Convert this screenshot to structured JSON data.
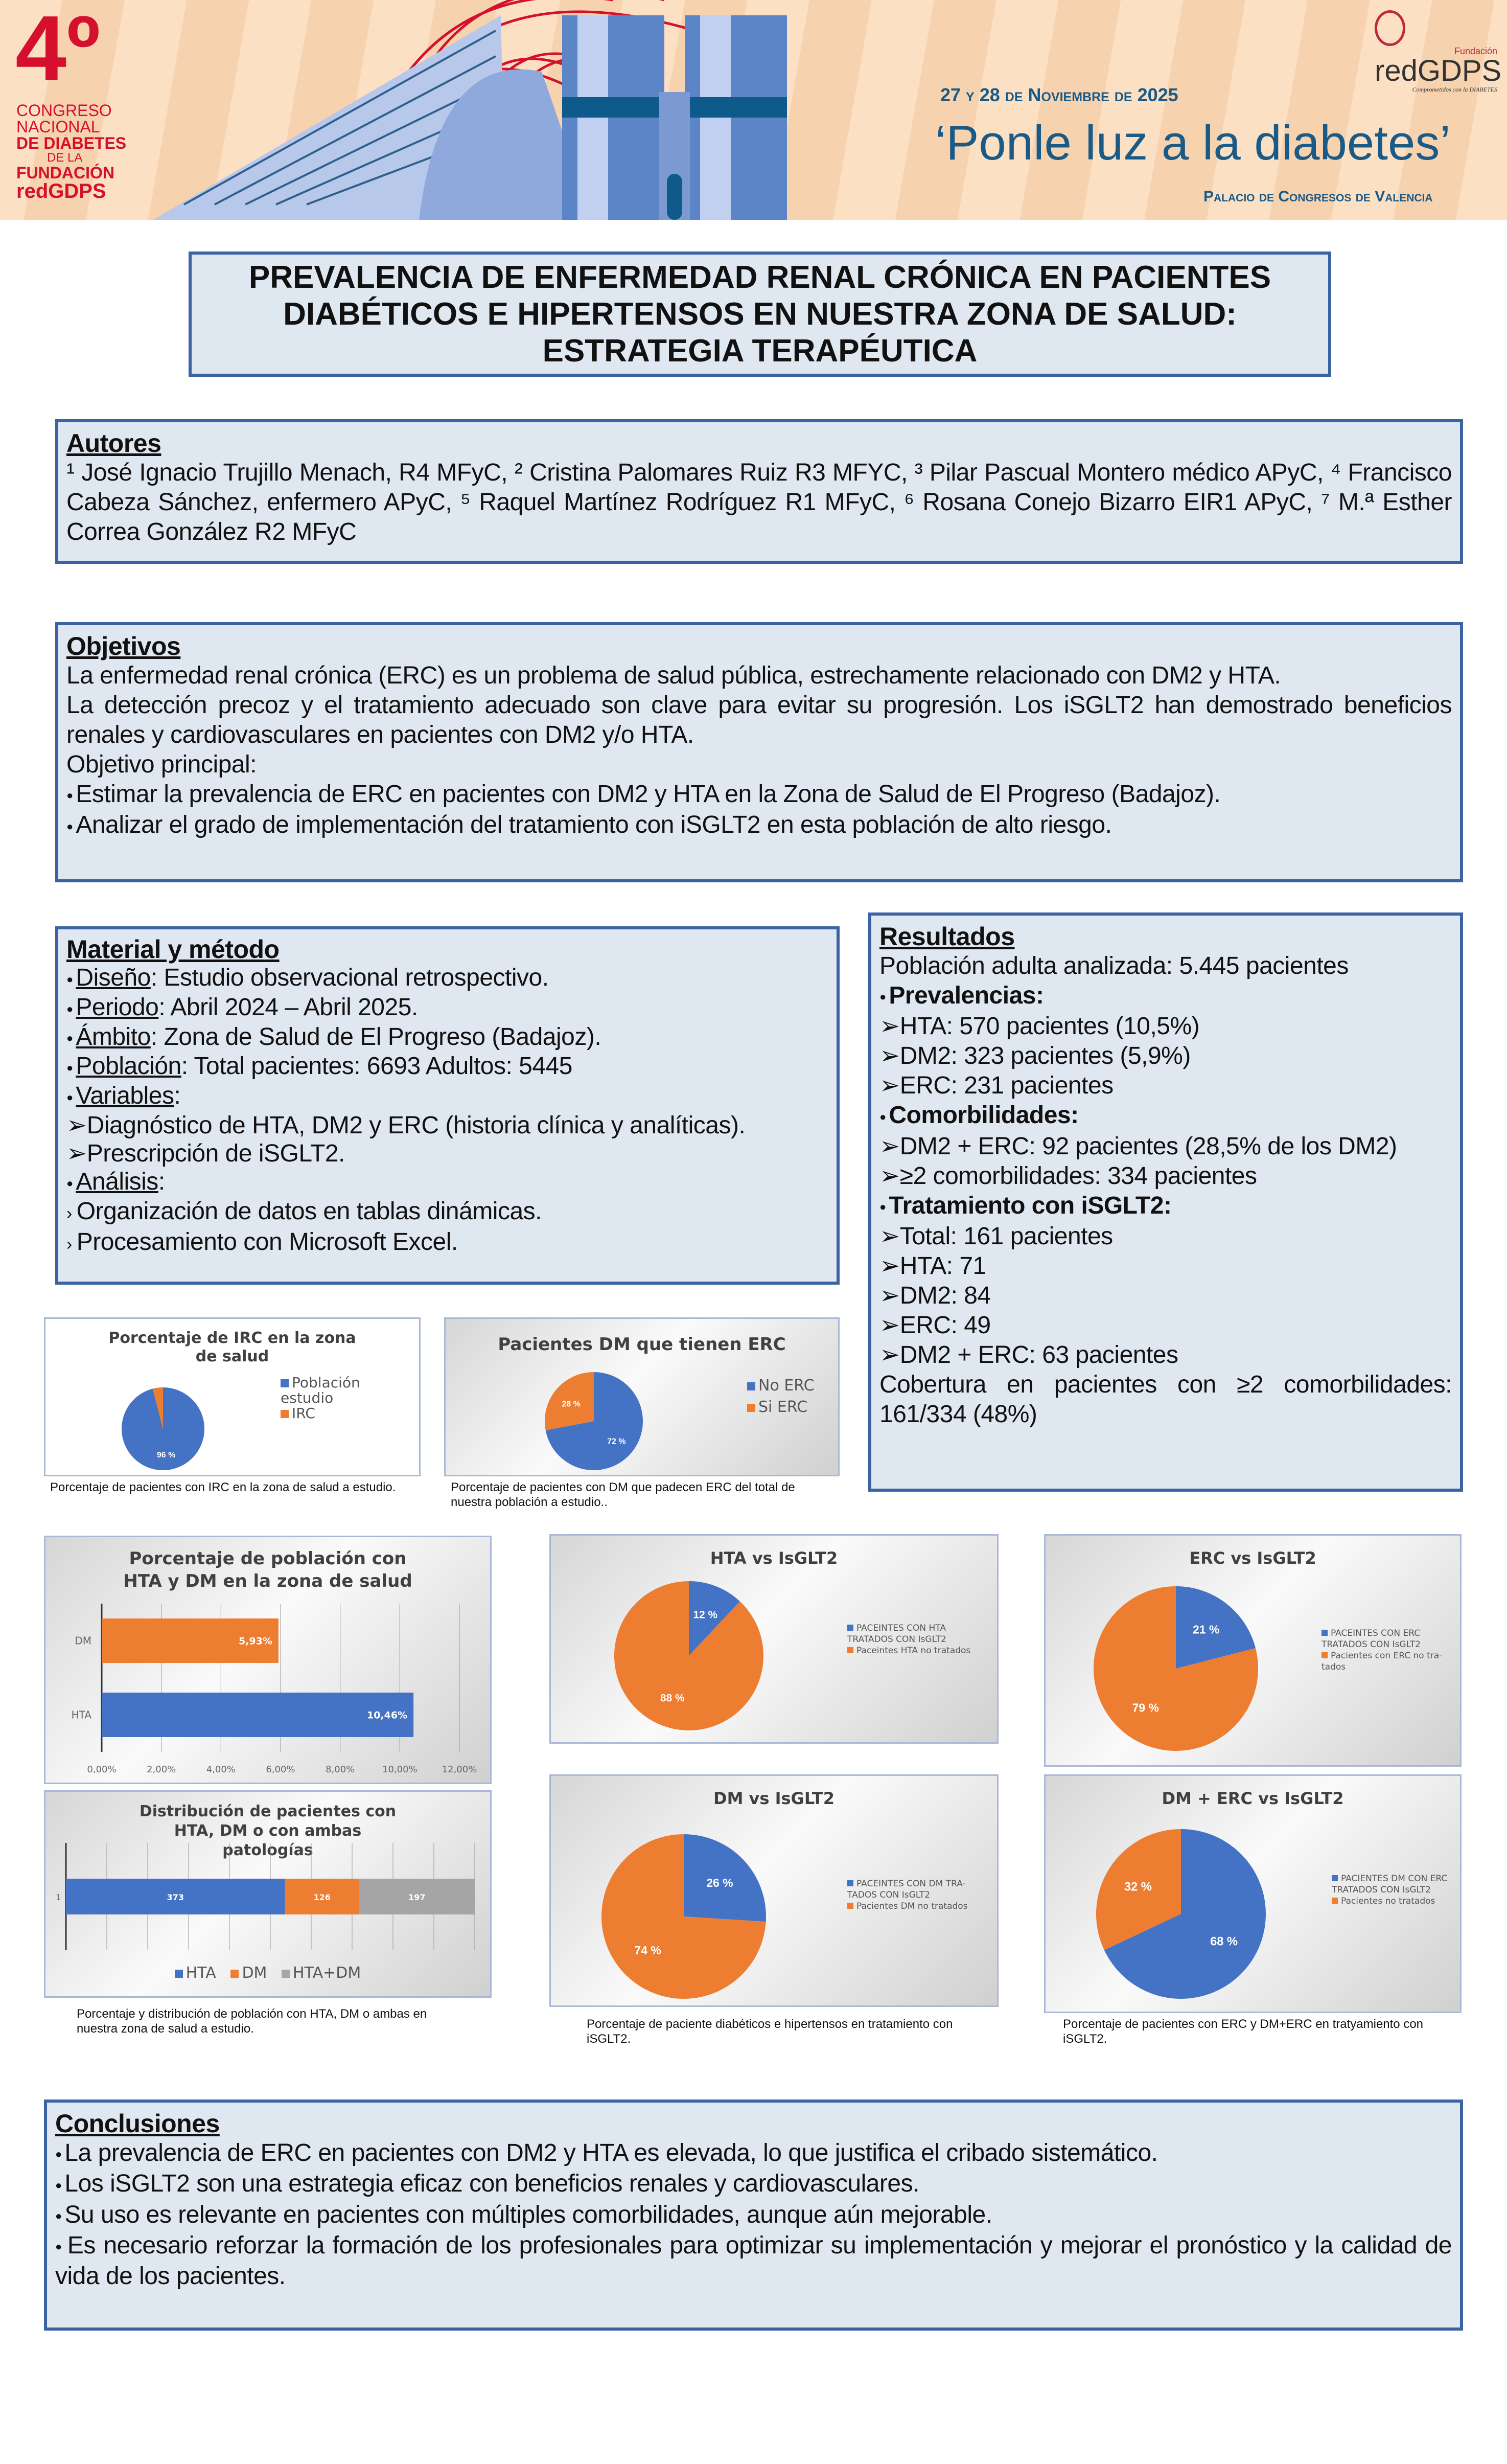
{
  "header": {
    "congress_number": "4º",
    "congress_lines": [
      "CONGRESO",
      "NACIONAL",
      "DE DIABETES",
      "DE LA",
      "FUNDACIÓN",
      "redGDPS"
    ],
    "dates": "27 y 28 de Noviembre de 2025",
    "slogan": "‘Ponle luz a la diabetes’",
    "venue": "Palacio de Congresos de Valencia",
    "logo_small": "Fundación",
    "logo": "redGDPS",
    "logo_tagline": "Comprometidos con la DIABETES",
    "colors": {
      "red": "#d5102e",
      "blue": "#1a5a86",
      "peach": "#f8d9b8"
    }
  },
  "title": "PREVALENCIA DE ENFERMEDAD RENAL CRÓNICA EN PACIENTES DIABÉTICOS E HIPERTENSOS EN NUESTRA ZONA DE SALUD: ESTRATEGIA TERAPÉUTICA",
  "autores": {
    "heading": "Autores",
    "text": "¹ José Ignacio Trujillo Menach, R4 MFyC, ² Cristina Palomares Ruiz R3 MFYC, ³ Pilar Pascual Montero médico APyC, ⁴ Francisco Cabeza Sánchez, enfermero APyC, ⁵ Raquel Martínez Rodríguez R1 MFyC, ⁶ Rosana Conejo Bizarro EIR1 APyC, ⁷ M.ª Esther Correa González R2 MFyC"
  },
  "objetivos": {
    "heading": "Objetivos",
    "p1": "La enfermedad renal crónica (ERC) es un problema de salud pública, estrechamente relacionado con DM2 y HTA.",
    "p2": "La detección precoz y el tratamiento adecuado son clave para evitar su progresión. Los iSGLT2 han demostrado beneficios renales y cardiovasculares en pacientes con DM2 y/o HTA.",
    "p3": "Objetivo principal:",
    "bullets": [
      "Estimar la prevalencia de ERC en pacientes con DM2 y HTA en la Zona de Salud de El Progreso (Badajoz).",
      "Analizar el grado de implementación del tratamiento con iSGLT2 en esta población de alto riesgo."
    ]
  },
  "material": {
    "heading": "Material y método",
    "items": [
      {
        "label": "Diseño",
        "text": ": Estudio observacional retrospectivo."
      },
      {
        "label": "Periodo",
        "text": ": Abril 2024 – Abril 2025."
      },
      {
        "label": "Ámbito",
        "text": ": Zona de Salud de El Progreso (Badajoz)."
      },
      {
        "label": "Población",
        "text": ": Total pacientes: 6693 Adultos: 5445"
      },
      {
        "label": "Variables",
        "text": ":"
      }
    ],
    "variables": [
      "Diagnóstico de HTA, DM2 y ERC (historia clínica y analíticas).",
      "Prescripción de iSGLT2."
    ],
    "analisis_label": "Análisis",
    "analisis_text": ":",
    "analisis": [
      "Organización de datos en tablas dinámicas.",
      "Procesamiento con Microsoft Excel."
    ]
  },
  "resultados": {
    "heading": "Resultados",
    "intro": "Población adulta analizada: 5.445 pacientes",
    "prevalencias": "Prevalencias:",
    "prev_items": [
      "HTA: 570 pacientes (10,5%)",
      "DM2: 323 pacientes (5,9%)",
      "ERC: 231 pacientes"
    ],
    "comorbilidades": "Comorbilidades:",
    "com_items": [
      "DM2 + ERC: 92 pacientes (28,5% de los DM2)",
      "≥2 comorbilidades: 334 pacientes"
    ],
    "tratamiento": "Tratamiento con iSGLT2:",
    "trat_items": [
      "Total: 161 pacientes",
      "HTA: 71",
      "DM2: 84",
      "ERC: 49",
      "DM2 + ERC: 63 pacientes"
    ],
    "cobertura": "Cobertura en pacientes con ≥2 comorbilidades: 161/334 (48%)"
  },
  "captions": {
    "irc": "Porcentaje de pacientes con IRC en la zona de salud a estudio.",
    "dm_erc": "Porcentaje de pacientes con DM que padecen ERC del total de nuestra población a estudio..",
    "hta_dm": "Porcentaje y distribución de población con HTA, DM o ambas en nuestra zona de salud a estudio.",
    "isglt2": "Porcentaje de paciente diabéticos e hipertensos en tratamiento con iSGLT2.",
    "erc_isglt2": "Porcentaje de pacientes con ERC y DM+ERC en tratyamiento con iSGLT2."
  },
  "conclusiones": {
    "heading": "Conclusiones",
    "bullets": [
      "La prevalencia de ERC en pacientes con DM2 y HTA es elevada, lo que justifica el cribado sistemático.",
      "Los iSGLT2 son una estrategia eficaz con beneficios renales y cardiovasculares.",
      "Su uso es relevante en pacientes con múltiples comorbilidades, aunque aún mejorable.",
      "Es necesario reforzar la formación de los profesionales para optimizar su implementación y mejorar el pronóstico y la calidad de vida de los pacientes."
    ]
  },
  "chart_data": [
    {
      "id": "pie_irc",
      "type": "pie",
      "title": "Porcentaje de IRC en la zona de salud",
      "labels": [
        "Población estudio",
        "IRC"
      ],
      "values": [
        96,
        4
      ],
      "data_labels": [
        "96 %",
        ""
      ],
      "colors": [
        "#4472c4",
        "#ed7d31"
      ],
      "legend": "right"
    },
    {
      "id": "pie_dm",
      "type": "pie",
      "title": "Pacientes DM que tienen ERC",
      "labels": [
        "No ERC",
        "Si ERC"
      ],
      "values": [
        72,
        28
      ],
      "data_labels": [
        "72 %",
        "28 %"
      ],
      "colors": [
        "#4472c4",
        "#ed7d31"
      ],
      "legend": "right"
    },
    {
      "id": "bar_prev",
      "type": "bar",
      "orientation": "horizontal",
      "title": "Porcentaje de población con HTA y DM en la zona de salud",
      "categories": [
        "HTA",
        "DM"
      ],
      "values": [
        10.46,
        5.93
      ],
      "data_labels": [
        "10,46%",
        "5,93%"
      ],
      "colors": [
        "#4472c4",
        "#ed7d31"
      ],
      "xlim": [
        0,
        12
      ],
      "xticks": [
        "0,00%",
        "2,00%",
        "4,00%",
        "6,00%",
        "8,00%",
        "10,00%",
        "12,00%"
      ],
      "grid": true
    },
    {
      "id": "bar_dist",
      "type": "bar",
      "orientation": "horizontal",
      "stacked": true,
      "title": "Distribución de pacientes con HTA, DM o con ambas patologías",
      "categories": [
        "1"
      ],
      "series": [
        {
          "name": "HTA",
          "values": [
            373
          ]
        },
        {
          "name": "DM",
          "values": [
            126
          ]
        },
        {
          "name": "HTA+DM",
          "values": [
            197
          ]
        }
      ],
      "colors": [
        "#4472c4",
        "#ed7d31",
        "#a5a5a5"
      ],
      "legend": "bottom",
      "grid": true
    },
    {
      "id": "pie_hta",
      "type": "pie",
      "title": "HTA vs IsGLT2",
      "labels": [
        "PACEINTES CON HTA TRATADOS CON IsGLT2",
        "Paceintes HTA no tratados"
      ],
      "values": [
        12,
        88
      ],
      "data_labels": [
        "12 %",
        "88 %"
      ],
      "colors": [
        "#4472c4",
        "#ed7d31"
      ],
      "legend": "right"
    },
    {
      "id": "pie_erc",
      "type": "pie",
      "title": "ERC vs IsGLT2",
      "labels": [
        "PACEINTES CON ERC TRATADOS CON IsGLT2",
        "Pacientes con ERC no tra-tados"
      ],
      "values": [
        21,
        79
      ],
      "data_labels": [
        "21 %",
        "79 %"
      ],
      "colors": [
        "#4472c4",
        "#ed7d31"
      ],
      "legend": "right"
    },
    {
      "id": "pie_dmi",
      "type": "pie",
      "title": "DM vs IsGLT2",
      "labels": [
        "PACEINTES CON DM TRA-TADOS CON IsGLT2",
        "Pacientes DM no tratados"
      ],
      "values": [
        26,
        74
      ],
      "data_labels": [
        "26 %",
        "74 %"
      ],
      "colors": [
        "#4472c4",
        "#ed7d31"
      ],
      "legend": "right"
    },
    {
      "id": "pie_dmerc",
      "type": "pie",
      "title": "DM + ERC vs IsGLT2",
      "labels": [
        "PACIENTES DM CON ERC TRATADOS CON IsGLT2",
        "Pacientes no tratados"
      ],
      "values": [
        68,
        32
      ],
      "data_labels": [
        "68 %",
        "32 %"
      ],
      "colors": [
        "#4472c4",
        "#ed7d31"
      ],
      "legend": "right"
    }
  ]
}
